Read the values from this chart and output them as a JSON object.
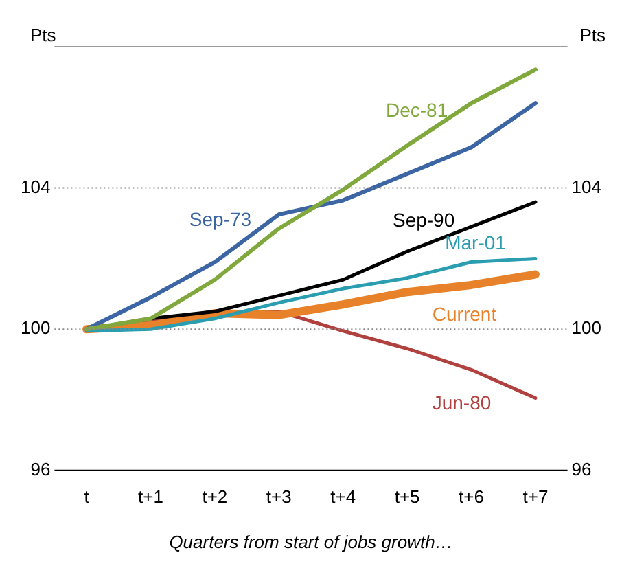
{
  "chart_data": {
    "type": "line",
    "xlabel": "Quarters from start of jobs growth…",
    "ylabel": "Pts",
    "y2label": "Pts",
    "categories": [
      "t",
      "t+1",
      "t+2",
      "t+3",
      "t+4",
      "t+5",
      "t+6",
      "t+7"
    ],
    "series": [
      {
        "name": "Dec-81",
        "color": "#80a83c",
        "values": [
          100,
          100.3,
          101.4,
          102.85,
          103.95,
          105.2,
          106.4,
          107.35
        ]
      },
      {
        "name": "Sep-73",
        "color": "#3c66a3",
        "values": [
          100,
          100.9,
          101.9,
          103.25,
          103.65,
          104.4,
          105.15,
          106.4
        ]
      },
      {
        "name": "Sep-90",
        "color": "#000000",
        "values": [
          100,
          100.3,
          100.5,
          100.95,
          101.4,
          102.2,
          102.9,
          103.6
        ]
      },
      {
        "name": "Mar-01",
        "color": "#2b9db0",
        "values": [
          99.95,
          100,
          100.3,
          100.75,
          101.15,
          101.45,
          101.9,
          102
        ]
      },
      {
        "name": "Current",
        "color": "#e8822a",
        "values": [
          100,
          100.1,
          100.45,
          100.4,
          100.7,
          101.05,
          101.25,
          101.55
        ]
      },
      {
        "name": "Jun-80",
        "color": "#b0413e",
        "values": [
          100,
          100.2,
          100.5,
          100.5,
          99.95,
          99.45,
          98.85,
          98.05
        ]
      }
    ],
    "ylim": [
      96,
      108
    ],
    "yticks": [
      96,
      100,
      104,
      {
        "value": 108,
        "label": null
      }
    ],
    "y2lim": [
      96,
      108
    ],
    "y2ticks": [
      96,
      100,
      104
    ],
    "grid": "y",
    "legend": false,
    "marker": "none",
    "line_style": "solid"
  }
}
